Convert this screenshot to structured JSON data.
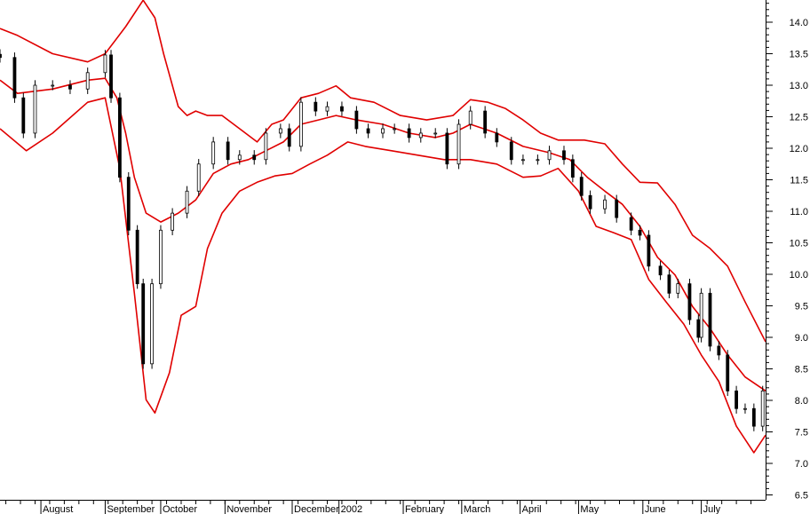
{
  "chart_data": {
    "type": "candlestick",
    "title": "",
    "xlabel": "",
    "ylabel": "",
    "ylim": [
      6.4,
      14.35
    ],
    "xlim_trading_days": [
      0,
      262
    ],
    "y_ticks": [
      "6.5",
      "7.0",
      "7.5",
      "8.0",
      "8.5",
      "9.0",
      "9.5",
      "10.0",
      "10.5",
      "11.0",
      "11.5",
      "12.0",
      "12.5",
      "13.0",
      "13.5",
      "14.0"
    ],
    "x_labels": [
      {
        "day": 14,
        "label": "August"
      },
      {
        "day": 36,
        "label": "September"
      },
      {
        "day": 55,
        "label": "October"
      },
      {
        "day": 77,
        "label": "November"
      },
      {
        "day": 100,
        "label": "December"
      },
      {
        "day": 116,
        "label": "2002"
      },
      {
        "day": 138,
        "label": "February"
      },
      {
        "day": 158,
        "label": "March"
      },
      {
        "day": 178,
        "label": "April"
      },
      {
        "day": 198,
        "label": "May"
      },
      {
        "day": 220,
        "label": "June"
      },
      {
        "day": 240,
        "label": "July"
      }
    ],
    "colors": {
      "price": "#000000",
      "bands": "#e00000",
      "axis": "#000000",
      "background": "#ffffff"
    },
    "price_closes": [
      [
        0,
        13.44
      ],
      [
        5,
        12.8
      ],
      [
        8,
        12.24
      ],
      [
        12,
        13.0
      ],
      [
        18,
        13.0
      ],
      [
        24,
        12.94
      ],
      [
        30,
        13.2
      ],
      [
        36,
        13.48
      ],
      [
        38,
        12.8
      ],
      [
        41,
        11.54
      ],
      [
        44,
        10.7
      ],
      [
        47,
        9.85
      ],
      [
        49,
        8.58
      ],
      [
        52,
        9.85
      ],
      [
        55,
        10.7
      ],
      [
        59,
        10.97
      ],
      [
        64,
        11.32
      ],
      [
        68,
        11.75
      ],
      [
        73,
        12.1
      ],
      [
        78,
        11.82
      ],
      [
        82,
        11.89
      ],
      [
        87,
        11.82
      ],
      [
        91,
        12.24
      ],
      [
        96,
        12.31
      ],
      [
        99,
        12.03
      ],
      [
        103,
        12.73
      ],
      [
        108,
        12.59
      ],
      [
        112,
        12.66
      ],
      [
        117,
        12.59
      ],
      [
        122,
        12.31
      ],
      [
        126,
        12.24
      ],
      [
        131,
        12.31
      ],
      [
        135,
        12.31
      ],
      [
        140,
        12.17
      ],
      [
        144,
        12.24
      ],
      [
        149,
        12.24
      ],
      [
        153,
        11.75
      ],
      [
        157,
        12.38
      ],
      [
        161,
        12.59
      ],
      [
        166,
        12.24
      ],
      [
        170,
        12.1
      ],
      [
        175,
        11.82
      ],
      [
        179,
        11.82
      ],
      [
        184,
        11.82
      ],
      [
        188,
        11.96
      ],
      [
        193,
        11.82
      ],
      [
        196,
        11.54
      ],
      [
        199,
        11.25
      ],
      [
        202,
        11.04
      ],
      [
        207,
        11.18
      ],
      [
        211,
        10.9
      ],
      [
        216,
        10.7
      ],
      [
        219,
        10.62
      ],
      [
        222,
        10.13
      ],
      [
        226,
        9.99
      ],
      [
        229,
        9.7
      ],
      [
        232,
        9.85
      ],
      [
        236,
        9.28
      ],
      [
        239,
        9.0
      ],
      [
        240,
        9.7
      ],
      [
        243,
        8.86
      ],
      [
        246,
        8.72
      ],
      [
        249,
        8.15
      ],
      [
        252,
        7.87
      ],
      [
        255,
        7.87
      ],
      [
        258,
        7.59
      ],
      [
        261,
        8.15
      ]
    ],
    "bands": {
      "upper": [
        [
          0,
          13.9
        ],
        [
          6,
          13.79
        ],
        [
          18,
          13.5
        ],
        [
          30,
          13.37
        ],
        [
          36,
          13.5
        ],
        [
          43,
          13.93
        ],
        [
          49,
          14.35
        ],
        [
          53,
          14.07
        ],
        [
          56,
          13.5
        ],
        [
          61,
          12.66
        ],
        [
          64,
          12.52
        ],
        [
          67,
          12.59
        ],
        [
          71,
          12.52
        ],
        [
          76,
          12.52
        ],
        [
          82,
          12.31
        ],
        [
          88,
          12.1
        ],
        [
          93,
          12.38
        ],
        [
          97,
          12.45
        ],
        [
          103,
          12.8
        ],
        [
          109,
          12.87
        ],
        [
          115,
          12.99
        ],
        [
          120,
          12.8
        ],
        [
          128,
          12.73
        ],
        [
          137,
          12.52
        ],
        [
          146,
          12.45
        ],
        [
          155,
          12.52
        ],
        [
          161,
          12.77
        ],
        [
          167,
          12.73
        ],
        [
          173,
          12.63
        ],
        [
          179,
          12.45
        ],
        [
          185,
          12.24
        ],
        [
          191,
          12.13
        ],
        [
          200,
          12.13
        ],
        [
          207,
          12.07
        ],
        [
          213,
          11.75
        ],
        [
          219,
          11.46
        ],
        [
          225,
          11.45
        ],
        [
          231,
          11.11
        ],
        [
          237,
          10.62
        ],
        [
          243,
          10.41
        ],
        [
          249,
          10.13
        ],
        [
          255,
          9.56
        ],
        [
          262,
          8.93
        ]
      ],
      "middle": [
        [
          0,
          13.08
        ],
        [
          6,
          12.87
        ],
        [
          18,
          12.94
        ],
        [
          30,
          13.08
        ],
        [
          36,
          13.11
        ],
        [
          40,
          12.8
        ],
        [
          43,
          12.24
        ],
        [
          46,
          11.54
        ],
        [
          50,
          10.97
        ],
        [
          55,
          10.83
        ],
        [
          61,
          10.97
        ],
        [
          67,
          11.18
        ],
        [
          73,
          11.6
        ],
        [
          79,
          11.75
        ],
        [
          85,
          11.82
        ],
        [
          91,
          11.96
        ],
        [
          97,
          12.1
        ],
        [
          103,
          12.38
        ],
        [
          109,
          12.45
        ],
        [
          115,
          12.52
        ],
        [
          122,
          12.45
        ],
        [
          131,
          12.38
        ],
        [
          140,
          12.24
        ],
        [
          149,
          12.17
        ],
        [
          155,
          12.24
        ],
        [
          161,
          12.38
        ],
        [
          170,
          12.24
        ],
        [
          179,
          12.03
        ],
        [
          188,
          11.93
        ],
        [
          195,
          11.82
        ],
        [
          201,
          11.54
        ],
        [
          207,
          11.32
        ],
        [
          213,
          11.11
        ],
        [
          219,
          10.76
        ],
        [
          225,
          10.27
        ],
        [
          231,
          9.99
        ],
        [
          237,
          9.49
        ],
        [
          243,
          9.14
        ],
        [
          249,
          8.72
        ],
        [
          255,
          8.37
        ],
        [
          262,
          8.15
        ]
      ],
      "lower": [
        [
          0,
          12.31
        ],
        [
          9,
          11.96
        ],
        [
          18,
          12.24
        ],
        [
          30,
          12.73
        ],
        [
          36,
          12.8
        ],
        [
          41,
          11.68
        ],
        [
          46,
          9.7
        ],
        [
          50,
          8.01
        ],
        [
          53,
          7.8
        ],
        [
          58,
          8.44
        ],
        [
          62,
          9.35
        ],
        [
          67,
          9.49
        ],
        [
          71,
          10.41
        ],
        [
          76,
          10.97
        ],
        [
          82,
          11.32
        ],
        [
          88,
          11.46
        ],
        [
          94,
          11.56
        ],
        [
          100,
          11.6
        ],
        [
          106,
          11.75
        ],
        [
          112,
          11.89
        ],
        [
          119,
          12.1
        ],
        [
          125,
          12.03
        ],
        [
          134,
          11.96
        ],
        [
          143,
          11.89
        ],
        [
          152,
          11.82
        ],
        [
          161,
          11.82
        ],
        [
          170,
          11.75
        ],
        [
          179,
          11.54
        ],
        [
          185,
          11.56
        ],
        [
          191,
          11.68
        ],
        [
          198,
          11.32
        ],
        [
          204,
          10.76
        ],
        [
          210,
          10.66
        ],
        [
          216,
          10.55
        ],
        [
          222,
          9.92
        ],
        [
          228,
          9.56
        ],
        [
          234,
          9.21
        ],
        [
          240,
          8.72
        ],
        [
          246,
          8.3
        ],
        [
          252,
          7.59
        ],
        [
          258,
          7.17
        ],
        [
          262,
          7.45
        ]
      ]
    }
  }
}
